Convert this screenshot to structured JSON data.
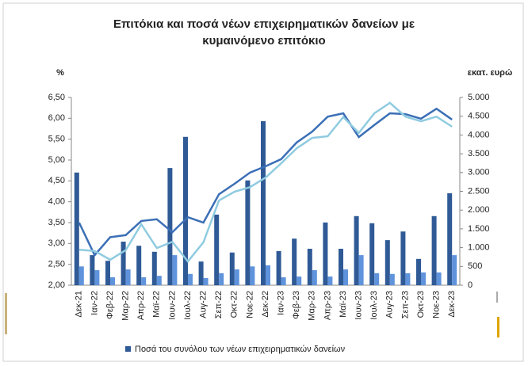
{
  "chart_data": {
    "type": "combo",
    "title": [
      "Επιτόκια και ποσά νέων επιχειρηματικών  δανείων με",
      "κυμαινόμενο επιτόκιο"
    ],
    "y_label": "%",
    "y2_label": "εκατ. ευρώ",
    "categories": [
      "Δεκ-21",
      "Ιαν-22",
      "Φεβ-22",
      "Μαρ-22",
      "Απρ-22",
      "Μαϊ-22",
      "Ιουν-22",
      "Ιουλ-22",
      "Αυγ-22",
      "Σεπ-22",
      "Οκτ-22",
      "Νοε-22",
      "Δεκ-22",
      "Ιαν-23",
      "Φεβ-23",
      "Μαρ-23",
      "Απρ-23",
      "Μαϊ-23",
      "Ιουν-23",
      "Ιουλ-23",
      "Αυγ-23",
      "Σεπ-23",
      "Οκτ-23",
      "Νοε-23",
      "Δεκ-23"
    ],
    "series": [
      {
        "name": "Ποσά του συνόλου των νέων επιχειρηματικών δανείων",
        "type": "bar",
        "axis": "y2",
        "color": "#2f5a96",
        "values": [
          3000,
          800,
          650,
          1160,
          1050,
          890,
          3120,
          3950,
          630,
          1880,
          870,
          2790,
          4370,
          910,
          1240,
          970,
          1670,
          970,
          1840,
          1650,
          1200,
          1430,
          700,
          1840,
          2450
        ]
      },
      {
        "type": "bar",
        "axis": "y2",
        "color": "#5f93dc",
        "values": [
          500,
          400,
          210,
          420,
          210,
          250,
          800,
          300,
          190,
          320,
          420,
          500,
          530,
          210,
          230,
          400,
          230,
          420,
          800,
          320,
          300,
          320,
          340,
          340,
          800
        ]
      },
      {
        "type": "line",
        "axis": "y",
        "color": "#3b6fb6",
        "values": [
          3.5,
          2.72,
          3.15,
          3.2,
          3.54,
          3.58,
          3.27,
          3.63,
          3.5,
          4.18,
          4.43,
          4.7,
          4.85,
          5.02,
          5.42,
          5.68,
          6.04,
          6.12,
          5.55,
          5.84,
          6.12,
          6.1,
          5.99,
          6.23,
          5.97
        ]
      },
      {
        "type": "line",
        "axis": "y",
        "color": "#8fcbe0",
        "values": [
          2.85,
          2.82,
          2.61,
          2.84,
          3.46,
          2.89,
          3.04,
          2.57,
          3.03,
          4.03,
          4.24,
          4.35,
          4.58,
          4.92,
          5.28,
          5.53,
          5.57,
          6.03,
          5.65,
          6.12,
          6.37,
          6.04,
          5.93,
          6.04,
          5.8
        ]
      }
    ],
    "ylim": [
      2.0,
      6.5
    ],
    "yticks": [
      {
        "value": 2.0,
        "label": "2,00"
      },
      {
        "value": 2.5,
        "label": "2,50"
      },
      {
        "value": 3.0,
        "label": "3,00"
      },
      {
        "value": 3.5,
        "label": "3,50"
      },
      {
        "value": 4.0,
        "label": "4,00"
      },
      {
        "value": 4.5,
        "label": "4,50"
      },
      {
        "value": 5.0,
        "label": "5,00"
      },
      {
        "value": 5.5,
        "label": "5,50"
      },
      {
        "value": 6.0,
        "label": "6,00"
      },
      {
        "value": 6.5,
        "label": "6,50"
      }
    ],
    "y2lim": [
      0,
      5000
    ],
    "y2ticks": [
      0,
      500,
      {
        "value": 1000,
        "label": "1.000"
      },
      {
        "value": 1500,
        "label": "1.500"
      },
      {
        "value": 2000,
        "label": "2.000"
      },
      {
        "value": 2500,
        "label": "2.500"
      },
      {
        "value": 3000,
        "label": "3.000"
      },
      {
        "value": 3500,
        "label": "3.500"
      },
      {
        "value": 4000,
        "label": "4.000"
      },
      {
        "value": 4500,
        "label": "4.500"
      },
      {
        "value": 5000,
        "label": "5.000"
      }
    ],
    "legend": "bottom"
  }
}
